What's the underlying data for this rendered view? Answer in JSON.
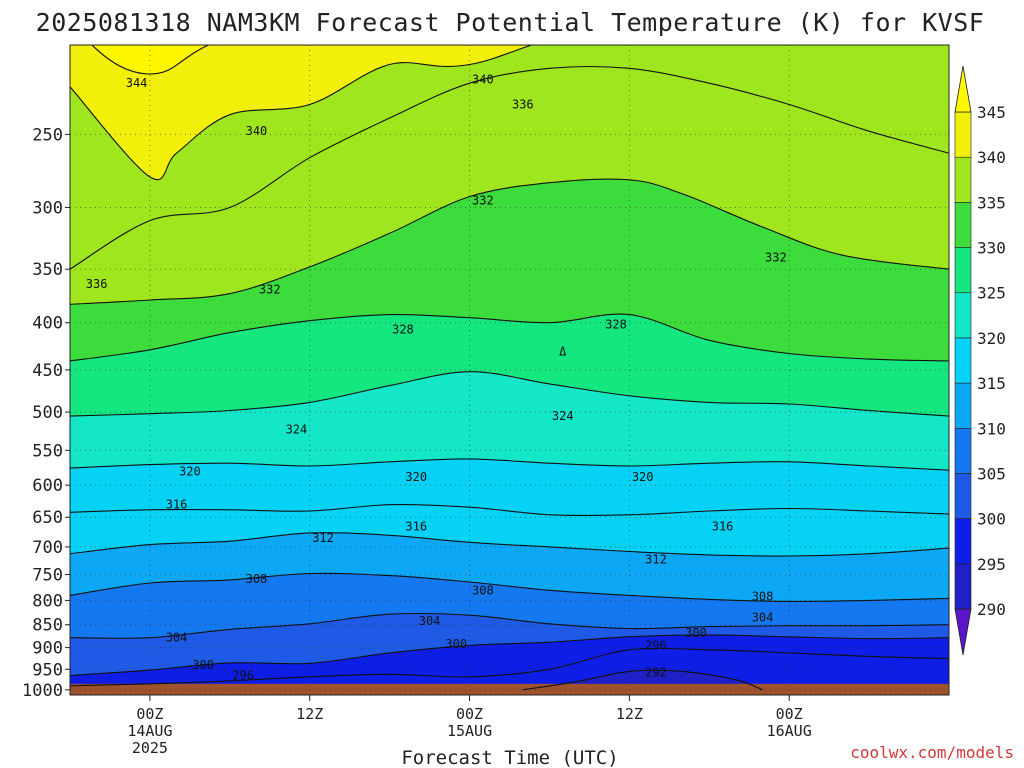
{
  "chart_data": {
    "type": "contour",
    "title": "2025081318 NAM3KM Forecast Potential Temperature (K) for KVSF",
    "xlabel": "Forecast Time (UTC)",
    "ylabel": "",
    "credit": "coolwx.com/models",
    "x_ticks": [
      {
        "hour": 0,
        "lines": [
          "00Z",
          "14AUG",
          "2025"
        ]
      },
      {
        "hour": 12,
        "lines": [
          "12Z"
        ]
      },
      {
        "hour": 24,
        "lines": [
          "00Z",
          "15AUG"
        ]
      },
      {
        "hour": 36,
        "lines": [
          "12Z"
        ]
      },
      {
        "hour": 48,
        "lines": [
          "00Z",
          "16AUG"
        ]
      }
    ],
    "xlim": [
      -6,
      60
    ],
    "y_ticks": [
      250,
      300,
      350,
      400,
      450,
      500,
      550,
      600,
      650,
      700,
      750,
      800,
      850,
      900,
      950,
      1000
    ],
    "ylim_hPa": [
      200,
      1013
    ],
    "y_scale": "log-pressure",
    "grid": "dotted",
    "colorbar": {
      "levels": [
        290,
        295,
        300,
        305,
        310,
        315,
        320,
        325,
        330,
        335,
        340,
        345
      ],
      "colors": [
        "#5c14c8",
        "#2020c8",
        "#0f1ee6",
        "#1e5ae6",
        "#1478f0",
        "#0ca8f5",
        "#06d2f5",
        "#14e6c8",
        "#14e680",
        "#3cdc3c",
        "#a0e61e",
        "#f2f00a",
        "#fff700"
      ]
    },
    "isentropes": [
      {
        "theta": 344,
        "p": [
          [
            -6,
            190
          ],
          [
            0,
            215
          ],
          [
            12,
            190
          ],
          [
            60,
            190
          ]
        ]
      },
      {
        "theta": 340,
        "p": [
          [
            -6,
            222
          ],
          [
            0,
            278
          ],
          [
            2,
            262
          ],
          [
            6,
            238
          ],
          [
            12,
            232
          ],
          [
            18,
            210
          ],
          [
            24,
            210
          ],
          [
            36,
            190
          ],
          [
            60,
            195
          ]
        ]
      },
      {
        "theta": 336,
        "p": [
          [
            -6,
            350
          ],
          [
            0,
            310
          ],
          [
            6,
            300
          ],
          [
            12,
            265
          ],
          [
            18,
            240
          ],
          [
            24,
            220
          ],
          [
            30,
            212
          ],
          [
            36,
            212
          ],
          [
            42,
            220
          ],
          [
            48,
            232
          ],
          [
            54,
            248
          ],
          [
            60,
            262
          ]
        ]
      },
      {
        "theta": 332,
        "p": [
          [
            -6,
            382
          ],
          [
            0,
            378
          ],
          [
            6,
            372
          ],
          [
            12,
            348
          ],
          [
            18,
            320
          ],
          [
            24,
            292
          ],
          [
            30,
            282
          ],
          [
            36,
            280
          ],
          [
            40,
            290
          ],
          [
            46,
            315
          ],
          [
            52,
            338
          ],
          [
            60,
            350
          ]
        ]
      },
      {
        "theta": 328,
        "p": [
          [
            -6,
            440
          ],
          [
            0,
            428
          ],
          [
            6,
            410
          ],
          [
            12,
            398
          ],
          [
            18,
            392
          ],
          [
            24,
            395
          ],
          [
            30,
            400
          ],
          [
            36,
            392
          ],
          [
            42,
            418
          ],
          [
            48,
            432
          ],
          [
            54,
            438
          ],
          [
            60,
            440
          ]
        ]
      },
      {
        "theta": 324,
        "p": [
          [
            -6,
            505
          ],
          [
            0,
            502
          ],
          [
            6,
            498
          ],
          [
            12,
            488
          ],
          [
            18,
            468
          ],
          [
            24,
            452
          ],
          [
            30,
            466
          ],
          [
            36,
            480
          ],
          [
            42,
            488
          ],
          [
            48,
            490
          ],
          [
            54,
            498
          ],
          [
            60,
            505
          ]
        ]
      },
      {
        "theta": 320,
        "p": [
          [
            -6,
            575
          ],
          [
            0,
            570
          ],
          [
            6,
            568
          ],
          [
            12,
            572
          ],
          [
            18,
            566
          ],
          [
            24,
            562
          ],
          [
            30,
            568
          ],
          [
            36,
            572
          ],
          [
            42,
            568
          ],
          [
            48,
            566
          ],
          [
            54,
            572
          ],
          [
            60,
            578
          ]
        ]
      },
      {
        "theta": 316,
        "p": [
          [
            -6,
            642
          ],
          [
            0,
            638
          ],
          [
            6,
            638
          ],
          [
            12,
            640
          ],
          [
            18,
            630
          ],
          [
            24,
            634
          ],
          [
            30,
            646
          ],
          [
            36,
            646
          ],
          [
            42,
            640
          ],
          [
            48,
            636
          ],
          [
            54,
            640
          ],
          [
            60,
            645
          ]
        ]
      },
      {
        "theta": 312,
        "p": [
          [
            -6,
            712
          ],
          [
            0,
            696
          ],
          [
            6,
            690
          ],
          [
            12,
            676
          ],
          [
            18,
            680
          ],
          [
            24,
            692
          ],
          [
            30,
            700
          ],
          [
            36,
            708
          ],
          [
            42,
            714
          ],
          [
            48,
            716
          ],
          [
            54,
            712
          ],
          [
            60,
            702
          ]
        ]
      },
      {
        "theta": 308,
        "p": [
          [
            -6,
            790
          ],
          [
            0,
            766
          ],
          [
            6,
            760
          ],
          [
            12,
            748
          ],
          [
            18,
            752
          ],
          [
            24,
            764
          ],
          [
            30,
            780
          ],
          [
            36,
            790
          ],
          [
            42,
            798
          ],
          [
            48,
            802
          ],
          [
            54,
            800
          ],
          [
            60,
            796
          ]
        ]
      },
      {
        "theta": 304,
        "p": [
          [
            -6,
            878
          ],
          [
            0,
            878
          ],
          [
            6,
            860
          ],
          [
            12,
            848
          ],
          [
            18,
            828
          ],
          [
            24,
            830
          ],
          [
            30,
            848
          ],
          [
            36,
            858
          ],
          [
            42,
            854
          ],
          [
            48,
            852
          ],
          [
            54,
            852
          ],
          [
            60,
            850
          ]
        ]
      },
      {
        "theta": 300,
        "p": [
          [
            -6,
            965
          ],
          [
            0,
            952
          ],
          [
            6,
            935
          ],
          [
            12,
            936
          ],
          [
            18,
            912
          ],
          [
            24,
            895
          ],
          [
            30,
            888
          ],
          [
            36,
            876
          ],
          [
            42,
            872
          ],
          [
            48,
            876
          ],
          [
            54,
            880
          ],
          [
            60,
            878
          ]
        ]
      },
      {
        "theta": 296,
        "p": [
          [
            -6,
            990
          ],
          [
            0,
            985
          ],
          [
            6,
            978
          ],
          [
            12,
            968
          ],
          [
            18,
            962
          ],
          [
            24,
            968
          ],
          [
            30,
            950
          ],
          [
            36,
            905
          ],
          [
            42,
            905
          ],
          [
            48,
            912
          ],
          [
            54,
            920
          ],
          [
            60,
            925
          ]
        ]
      },
      {
        "theta": 292,
        "p": [
          [
            28,
            1000
          ],
          [
            32,
            980
          ],
          [
            36,
            955
          ],
          [
            40,
            955
          ],
          [
            44,
            975
          ],
          [
            46,
            1000
          ]
        ]
      }
    ],
    "contour_labels": [
      {
        "text": "344",
        "x": -1,
        "p": 220
      },
      {
        "text": "340",
        "x": 8,
        "p": 248
      },
      {
        "text": "340",
        "x": 25,
        "p": 218
      },
      {
        "text": "336",
        "x": 28,
        "p": 232
      },
      {
        "text": "336",
        "x": -4,
        "p": 363
      },
      {
        "text": "332",
        "x": 25,
        "p": 295
      },
      {
        "text": "332",
        "x": 9,
        "p": 368
      },
      {
        "text": "332",
        "x": 47,
        "p": 340
      },
      {
        "text": "328",
        "x": 19,
        "p": 407
      },
      {
        "text": "328",
        "x": 35,
        "p": 402
      },
      {
        "text": "324",
        "x": 11,
        "p": 522
      },
      {
        "text": "324",
        "x": 31,
        "p": 505
      },
      {
        "text": "320",
        "x": 3,
        "p": 580
      },
      {
        "text": "320",
        "x": 20,
        "p": 588
      },
      {
        "text": "320",
        "x": 37,
        "p": 588
      },
      {
        "text": "316",
        "x": 2,
        "p": 630
      },
      {
        "text": "316",
        "x": 20,
        "p": 665
      },
      {
        "text": "316",
        "x": 43,
        "p": 665
      },
      {
        "text": "312",
        "x": 13,
        "p": 685
      },
      {
        "text": "312",
        "x": 38,
        "p": 722
      },
      {
        "text": "308",
        "x": 8,
        "p": 758
      },
      {
        "text": "308",
        "x": 25,
        "p": 780
      },
      {
        "text": "308",
        "x": 46,
        "p": 792
      },
      {
        "text": "304",
        "x": 2,
        "p": 878
      },
      {
        "text": "304",
        "x": 21,
        "p": 842
      },
      {
        "text": "304",
        "x": 46,
        "p": 835
      },
      {
        "text": "300",
        "x": 4,
        "p": 940
      },
      {
        "text": "300",
        "x": 23,
        "p": 892
      },
      {
        "text": "300",
        "x": 41,
        "p": 868
      },
      {
        "text": "296",
        "x": 7,
        "p": 965
      },
      {
        "text": "296",
        "x": 38,
        "p": 895
      },
      {
        "text": "292",
        "x": 38,
        "p": 958
      }
    ],
    "annotations": [
      {
        "text": "Δ",
        "x": 31,
        "p": 430
      }
    ]
  }
}
